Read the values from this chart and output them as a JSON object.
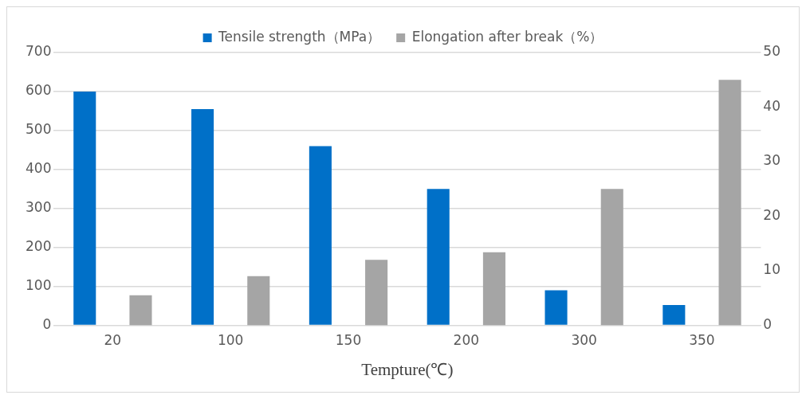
{
  "chart_data": {
    "type": "bar",
    "xlabel": "Tempture(℃)",
    "categories": [
      "20",
      "100",
      "150",
      "200",
      "300",
      "350"
    ],
    "series": [
      {
        "name": "Tensile strength（MPa）",
        "color": "#0070c8",
        "values": [
          600,
          555,
          460,
          350,
          90,
          52
        ]
      },
      {
        "name": "Elongation after break（%）",
        "color": "#a5a5a5",
        "axis": "y2",
        "values": [
          5.5,
          9,
          12,
          13.4,
          25,
          45
        ]
      }
    ],
    "ylim": [
      0,
      700
    ],
    "yticks": [
      0,
      100,
      200,
      300,
      400,
      500,
      600,
      700
    ],
    "y2lim": [
      0,
      50
    ],
    "y2ticks": [
      0,
      10,
      20,
      30,
      40,
      50
    ],
    "grid": "y",
    "legend": "top"
  }
}
